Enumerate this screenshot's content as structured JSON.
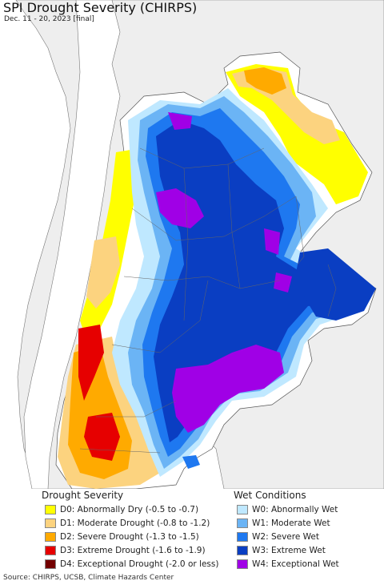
{
  "title": "SPI Drought Severity (CHIRPS)",
  "subtitle": "Dec. 11 - 20, 2023 [final]",
  "colors": {
    "ocean": "#ffffff",
    "land_outside": "#eeeeee",
    "no_signal": "#ffffff",
    "border": "#555555"
  },
  "legend": {
    "drought": {
      "title": "Drought Severity",
      "items": [
        {
          "label": "D0: Abnormally Dry (-0.5 to -0.7)",
          "color": "#ffff00"
        },
        {
          "label": "D1: Moderate Drought (-0.8 to -1.2)",
          "color": "#fcd37f"
        },
        {
          "label": "D2: Severe Drought (-1.3 to -1.5)",
          "color": "#ffaa00"
        },
        {
          "label": "D3: Extreme Drought (-1.6 to -1.9)",
          "color": "#e60000"
        },
        {
          "label": "D4: Exceptional Drought (-2.0 or less)",
          "color": "#730000"
        }
      ]
    },
    "wet": {
      "title": "Wet Conditions",
      "items": [
        {
          "label": "W0: Abnormally Wet",
          "color": "#bfe8ff"
        },
        {
          "label": "W1: Moderate Wet",
          "color": "#6bb4f5"
        },
        {
          "label": "W2: Severe Wet",
          "color": "#1e78f0"
        },
        {
          "label": "W3: Extreme Wet",
          "color": "#0a3ec2"
        },
        {
          "label": "W4: Exceptional Wet",
          "color": "#a000e6"
        }
      ]
    }
  },
  "source": "Source: CHIRPS, UCSB, Climate Hazards Center"
}
